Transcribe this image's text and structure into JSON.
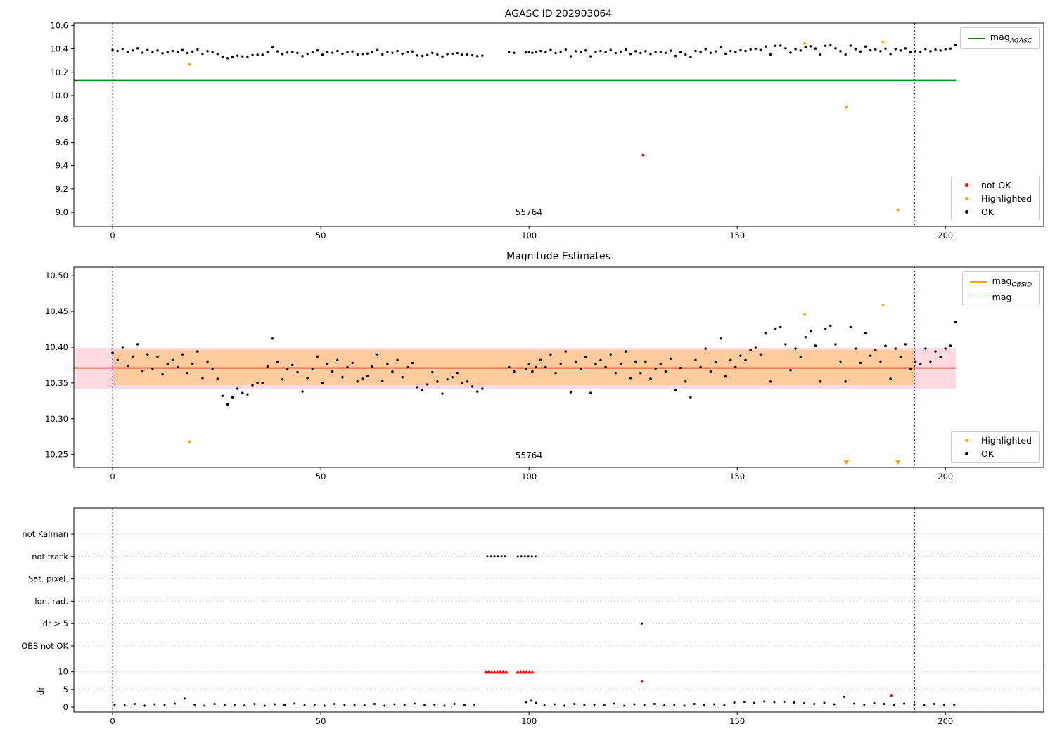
{
  "figure": {
    "titles": {
      "plot1": "AGASC ID 202903064",
      "plot2": "Magnitude Estimates"
    },
    "obsid_label": "55764",
    "colors": {
      "ok": "#000000",
      "not_ok": "#ff0000",
      "highlighted": "#ffa500",
      "mag_agasc_line": "#008000",
      "mag_line": "#ff0000",
      "mag_obsid_line": "#ffa500",
      "vline": "#990099",
      "band_pink": "#ffb6c1",
      "band_orange": "#ffa500",
      "grid": "#aaaaaa"
    },
    "legends": {
      "mag_prefix": "mag",
      "agasc_sub": "AGASC",
      "obsid_sub": "OBSID",
      "mag": "mag",
      "not_ok": "not OK",
      "highlighted": "Highlighted",
      "ok": "OK"
    }
  },
  "chart_data": {
    "type": "scatter",
    "x_ticks": [
      0,
      50,
      100,
      150,
      200
    ],
    "vlines": [
      0,
      192.6
    ],
    "mag_agasc": 10.13,
    "mag_mean": 10.371,
    "band_pink": [
      10.342,
      10.399
    ],
    "band_orange": [
      10.347,
      10.396
    ],
    "panel1": {
      "title": "AGASC ID 202903064",
      "ylim": [
        8.88,
        10.62
      ],
      "yticks": [
        10.6,
        10.4,
        10.2,
        10.0,
        9.8,
        9.6,
        9.4,
        9.2,
        9.0
      ]
    },
    "panel2": {
      "title": "Magnitude Estimates",
      "ylim": [
        10.232,
        10.512
      ],
      "yticks": [
        10.5,
        10.45,
        10.4,
        10.35,
        10.3,
        10.25
      ]
    },
    "mag_points": [
      [
        0,
        10.392
      ],
      [
        1.2,
        10.382
      ],
      [
        2.4,
        10.4
      ],
      [
        3.6,
        10.374
      ],
      [
        4.8,
        10.387
      ],
      [
        6,
        10.404
      ],
      [
        7.2,
        10.367
      ],
      [
        8.4,
        10.39
      ],
      [
        9.6,
        10.37
      ],
      [
        10.8,
        10.386
      ],
      [
        12,
        10.362
      ],
      [
        13.2,
        10.376
      ],
      [
        14.4,
        10.382
      ],
      [
        15.6,
        10.372
      ],
      [
        16.8,
        10.39
      ],
      [
        18,
        10.364
      ],
      [
        19.2,
        10.377
      ],
      [
        20.4,
        10.394
      ],
      [
        21.6,
        10.357
      ],
      [
        22.8,
        10.38
      ],
      [
        24,
        10.37
      ],
      [
        25.2,
        10.356
      ],
      [
        26.4,
        10.332
      ],
      [
        27.6,
        10.32
      ],
      [
        28.8,
        10.33
      ],
      [
        30,
        10.342
      ],
      [
        31.2,
        10.336
      ],
      [
        32.4,
        10.334
      ],
      [
        33.6,
        10.347
      ],
      [
        34.8,
        10.35
      ],
      [
        36,
        10.35
      ],
      [
        37.2,
        10.373
      ],
      [
        38.4,
        10.412
      ],
      [
        39.6,
        10.379
      ],
      [
        40.8,
        10.355
      ],
      [
        42,
        10.369
      ],
      [
        43.2,
        10.375
      ],
      [
        44.4,
        10.365
      ],
      [
        45.6,
        10.338
      ],
      [
        46.8,
        10.357
      ],
      [
        48,
        10.37
      ],
      [
        49.2,
        10.387
      ],
      [
        50.4,
        10.35
      ],
      [
        51.6,
        10.376
      ],
      [
        52.8,
        10.366
      ],
      [
        54,
        10.382
      ],
      [
        55.2,
        10.358
      ],
      [
        56.4,
        10.372
      ],
      [
        57.6,
        10.378
      ],
      [
        58.8,
        10.352
      ],
      [
        60,
        10.356
      ],
      [
        61.2,
        10.36
      ],
      [
        62.4,
        10.373
      ],
      [
        63.6,
        10.39
      ],
      [
        64.8,
        10.353
      ],
      [
        66,
        10.376
      ],
      [
        67.2,
        10.366
      ],
      [
        68.4,
        10.382
      ],
      [
        69.6,
        10.358
      ],
      [
        70.8,
        10.372
      ],
      [
        72,
        10.378
      ],
      [
        73.2,
        10.344
      ],
      [
        74.4,
        10.34
      ],
      [
        75.6,
        10.348
      ],
      [
        76.8,
        10.365
      ],
      [
        78,
        10.352
      ],
      [
        79.2,
        10.335
      ],
      [
        80.4,
        10.355
      ],
      [
        81.6,
        10.358
      ],
      [
        82.8,
        10.364
      ],
      [
        84,
        10.35
      ],
      [
        85.2,
        10.352
      ],
      [
        86.4,
        10.345
      ],
      [
        87.6,
        10.338
      ],
      [
        88.8,
        10.342
      ],
      [
        95.2,
        10.372
      ],
      [
        96.4,
        10.366
      ],
      [
        99.2,
        10.37
      ],
      [
        100,
        10.376
      ],
      [
        100.8,
        10.366
      ],
      [
        101.6,
        10.372
      ],
      [
        102.8,
        10.382
      ],
      [
        104,
        10.372
      ],
      [
        105.2,
        10.39
      ],
      [
        106.4,
        10.364
      ],
      [
        107.6,
        10.377
      ],
      [
        108.8,
        10.394
      ],
      [
        110,
        10.337
      ],
      [
        111.2,
        10.38
      ],
      [
        112.4,
        10.37
      ],
      [
        113.6,
        10.386
      ],
      [
        114.8,
        10.336
      ],
      [
        116,
        10.376
      ],
      [
        117.2,
        10.382
      ],
      [
        118.4,
        10.372
      ],
      [
        119.6,
        10.39
      ],
      [
        120.8,
        10.364
      ],
      [
        122,
        10.377
      ],
      [
        123.2,
        10.394
      ],
      [
        124.4,
        10.357
      ],
      [
        125.6,
        10.38
      ],
      [
        126.8,
        10.364
      ],
      [
        128,
        10.38
      ],
      [
        129.2,
        10.356
      ],
      [
        130.4,
        10.37
      ],
      [
        131.6,
        10.376
      ],
      [
        132.8,
        10.366
      ],
      [
        134,
        10.384
      ],
      [
        135.2,
        10.34
      ],
      [
        136.4,
        10.371
      ],
      [
        137.6,
        10.352
      ],
      [
        138.8,
        10.33
      ],
      [
        140,
        10.382
      ],
      [
        141.2,
        10.372
      ],
      [
        142.4,
        10.398
      ],
      [
        143.6,
        10.366
      ],
      [
        144.8,
        10.379
      ],
      [
        146,
        10.412
      ],
      [
        147.2,
        10.359
      ],
      [
        148.4,
        10.382
      ],
      [
        149.6,
        10.372
      ],
      [
        150.8,
        10.388
      ],
      [
        152,
        10.382
      ],
      [
        153.2,
        10.396
      ],
      [
        154.4,
        10.4
      ],
      [
        155.6,
        10.39
      ],
      [
        156.8,
        10.42
      ],
      [
        158,
        10.352
      ],
      [
        159.2,
        10.426
      ],
      [
        160.4,
        10.428
      ],
      [
        161.6,
        10.404
      ],
      [
        162.8,
        10.368
      ],
      [
        164,
        10.398
      ],
      [
        165.2,
        10.386
      ],
      [
        166.4,
        10.414
      ],
      [
        167.6,
        10.422
      ],
      [
        168.8,
        10.402
      ],
      [
        170,
        10.352
      ],
      [
        171.2,
        10.426
      ],
      [
        172.4,
        10.43
      ],
      [
        173.6,
        10.404
      ],
      [
        174.8,
        10.38
      ],
      [
        176,
        10.352
      ],
      [
        177.2,
        10.428
      ],
      [
        178.4,
        10.398
      ],
      [
        179.6,
        10.378
      ],
      [
        180.8,
        10.42
      ],
      [
        182,
        10.388
      ],
      [
        183.2,
        10.396
      ],
      [
        184.4,
        10.38
      ],
      [
        185.6,
        10.402
      ],
      [
        186.8,
        10.356
      ],
      [
        188,
        10.398
      ],
      [
        189.2,
        10.386
      ],
      [
        190.4,
        10.404
      ],
      [
        191.6,
        10.37
      ],
      [
        192.8,
        10.38
      ],
      [
        194,
        10.376
      ],
      [
        195.2,
        10.398
      ],
      [
        196.4,
        10.38
      ],
      [
        197.6,
        10.394
      ],
      [
        198.8,
        10.386
      ],
      [
        200,
        10.398
      ],
      [
        201.2,
        10.402
      ],
      [
        202.4,
        10.435
      ]
    ],
    "highlighted_points": [
      [
        18.5,
        10.268
      ],
      [
        166.2,
        10.446
      ],
      [
        185.0,
        10.459
      ]
    ],
    "highlighted_low_outliers": [
      [
        176.2,
        9.9
      ],
      [
        188.6,
        9.02
      ]
    ],
    "not_ok_points": [
      [
        127.4,
        9.49
      ]
    ],
    "panel3": {
      "flag_labels": [
        "not Kalman",
        "not track",
        "Sat. pixel.",
        "Ion. rad.",
        "dr > 5",
        "OBS not OK"
      ],
      "dr_ticks": [
        10,
        5,
        0
      ],
      "ylabel": "dr",
      "not_track_x": [
        90.0,
        90.85,
        91.7,
        92.55,
        93.4,
        94.25,
        97.3,
        98.15,
        99.0,
        99.85,
        100.7,
        101.55
      ],
      "dr_gt5_x": [
        127.1
      ],
      "dr_capped_x": [
        89.6,
        90.3,
        91.0,
        91.7,
        92.4,
        93.1,
        93.8,
        94.5,
        97.3,
        98.0,
        98.7,
        99.4,
        100.1,
        100.8
      ],
      "dr_red_points": [
        [
          127.1,
          7.2
        ],
        [
          187.0,
          3.2
        ]
      ],
      "dr_points": [
        [
          0.5,
          0.7
        ],
        [
          2.9,
          0.5
        ],
        [
          5.3,
          0.9
        ],
        [
          7.7,
          0.4
        ],
        [
          10.1,
          0.8
        ],
        [
          12.5,
          0.6
        ],
        [
          14.9,
          1.0
        ],
        [
          17.3,
          2.4
        ],
        [
          19.7,
          0.7
        ],
        [
          22.1,
          0.4
        ],
        [
          24.5,
          0.9
        ],
        [
          26.9,
          0.6
        ],
        [
          29.3,
          0.7
        ],
        [
          31.7,
          0.5
        ],
        [
          34.1,
          0.9
        ],
        [
          36.5,
          0.4
        ],
        [
          38.9,
          0.8
        ],
        [
          41.3,
          0.6
        ],
        [
          43.7,
          1.0
        ],
        [
          46.1,
          0.5
        ],
        [
          48.5,
          0.7
        ],
        [
          50.9,
          0.4
        ],
        [
          53.3,
          0.9
        ],
        [
          55.7,
          0.6
        ],
        [
          58.1,
          0.7
        ],
        [
          60.5,
          0.5
        ],
        [
          62.9,
          0.9
        ],
        [
          65.3,
          0.4
        ],
        [
          67.7,
          0.8
        ],
        [
          70.1,
          0.6
        ],
        [
          72.5,
          1.0
        ],
        [
          74.9,
          0.5
        ],
        [
          77.3,
          0.7
        ],
        [
          79.7,
          0.4
        ],
        [
          82.1,
          0.9
        ],
        [
          84.5,
          0.6
        ],
        [
          86.9,
          0.7
        ],
        [
          99.3,
          1.4
        ],
        [
          100.5,
          1.8
        ],
        [
          101.7,
          1.2
        ],
        [
          103.7,
          0.5
        ],
        [
          106.1,
          0.8
        ],
        [
          108.5,
          0.4
        ],
        [
          110.9,
          0.9
        ],
        [
          113.3,
          0.6
        ],
        [
          115.7,
          0.7
        ],
        [
          118.1,
          0.5
        ],
        [
          120.5,
          1.0
        ],
        [
          122.9,
          0.4
        ],
        [
          125.3,
          0.8
        ],
        [
          127.7,
          0.6
        ],
        [
          130.1,
          0.9
        ],
        [
          132.5,
          0.5
        ],
        [
          134.9,
          0.7
        ],
        [
          137.3,
          0.4
        ],
        [
          139.7,
          0.9
        ],
        [
          142.1,
          0.6
        ],
        [
          144.5,
          0.8
        ],
        [
          146.9,
          0.5
        ],
        [
          149.3,
          1.3
        ],
        [
          151.7,
          1.5
        ],
        [
          154.1,
          1.2
        ],
        [
          156.5,
          1.6
        ],
        [
          158.9,
          1.4
        ],
        [
          161.3,
          1.5
        ],
        [
          163.7,
          1.3
        ],
        [
          166.1,
          1.1
        ],
        [
          168.5,
          0.9
        ],
        [
          170.9,
          1.2
        ],
        [
          173.3,
          0.8
        ],
        [
          175.7,
          2.9
        ],
        [
          178.1,
          1.0
        ],
        [
          180.5,
          0.7
        ],
        [
          182.9,
          1.1
        ],
        [
          185.3,
          0.9
        ],
        [
          187.7,
          0.6
        ],
        [
          190.1,
          1.0
        ],
        [
          192.5,
          0.8
        ],
        [
          194.9,
          0.5
        ],
        [
          197.3,
          0.9
        ],
        [
          199.7,
          0.6
        ],
        [
          202.1,
          0.7
        ]
      ]
    }
  }
}
